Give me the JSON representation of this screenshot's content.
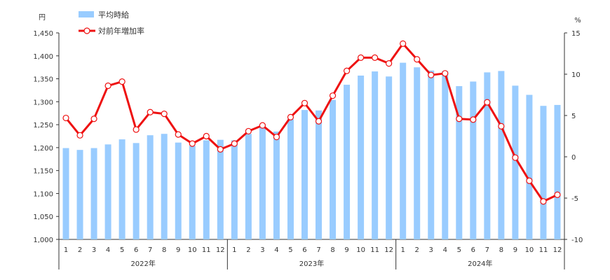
{
  "chart_data": {
    "type": "bar+line",
    "y_left_unit": "円",
    "y_right_unit": "%",
    "y_left": {
      "min": 1000,
      "max": 1450,
      "ticks": [
        "1,000",
        "1,050",
        "1,100",
        "1,150",
        "1,200",
        "1,250",
        "1,300",
        "1,350",
        "1,400",
        "1,450"
      ]
    },
    "y_right": {
      "min": -10,
      "max": 15,
      "ticks": [
        "-10",
        "-5",
        "0",
        "5",
        "10",
        "15"
      ]
    },
    "legend": {
      "position": "top-left"
    },
    "years": [
      "2022年",
      "2023年",
      "2024年"
    ],
    "months": [
      "1",
      "2",
      "3",
      "4",
      "5",
      "6",
      "7",
      "8",
      "9",
      "10",
      "11",
      "12"
    ],
    "series": [
      {
        "name": "平均時給",
        "type": "bar",
        "axis": "left",
        "color": "#99CCFF",
        "values": [
          1199,
          1195,
          1199,
          1207,
          1218,
          1210,
          1227,
          1230,
          1211,
          1204,
          1216,
          1217,
          1216,
          1230,
          1246,
          1235,
          1262,
          1282,
          1281,
          1304,
          1337,
          1357,
          1366,
          1355,
          1385,
          1375,
          1368,
          1367,
          1334,
          1344,
          1364,
          1367,
          1335,
          1315,
          1291,
          1293
        ]
      },
      {
        "name": "対前年増加率",
        "type": "line",
        "axis": "right",
        "color": "#EE1111",
        "values": [
          4.7,
          2.6,
          4.6,
          8.6,
          9.1,
          3.3,
          5.4,
          5.2,
          2.7,
          1.6,
          2.5,
          0.9,
          1.6,
          3.1,
          3.8,
          2.4,
          4.8,
          6.5,
          4.3,
          7.4,
          10.4,
          12.0,
          12.0,
          11.3,
          13.7,
          11.8,
          9.9,
          10.1,
          4.6,
          4.5,
          6.6,
          3.7,
          -0.1,
          -2.9,
          -5.4,
          -4.6
        ]
      }
    ]
  }
}
